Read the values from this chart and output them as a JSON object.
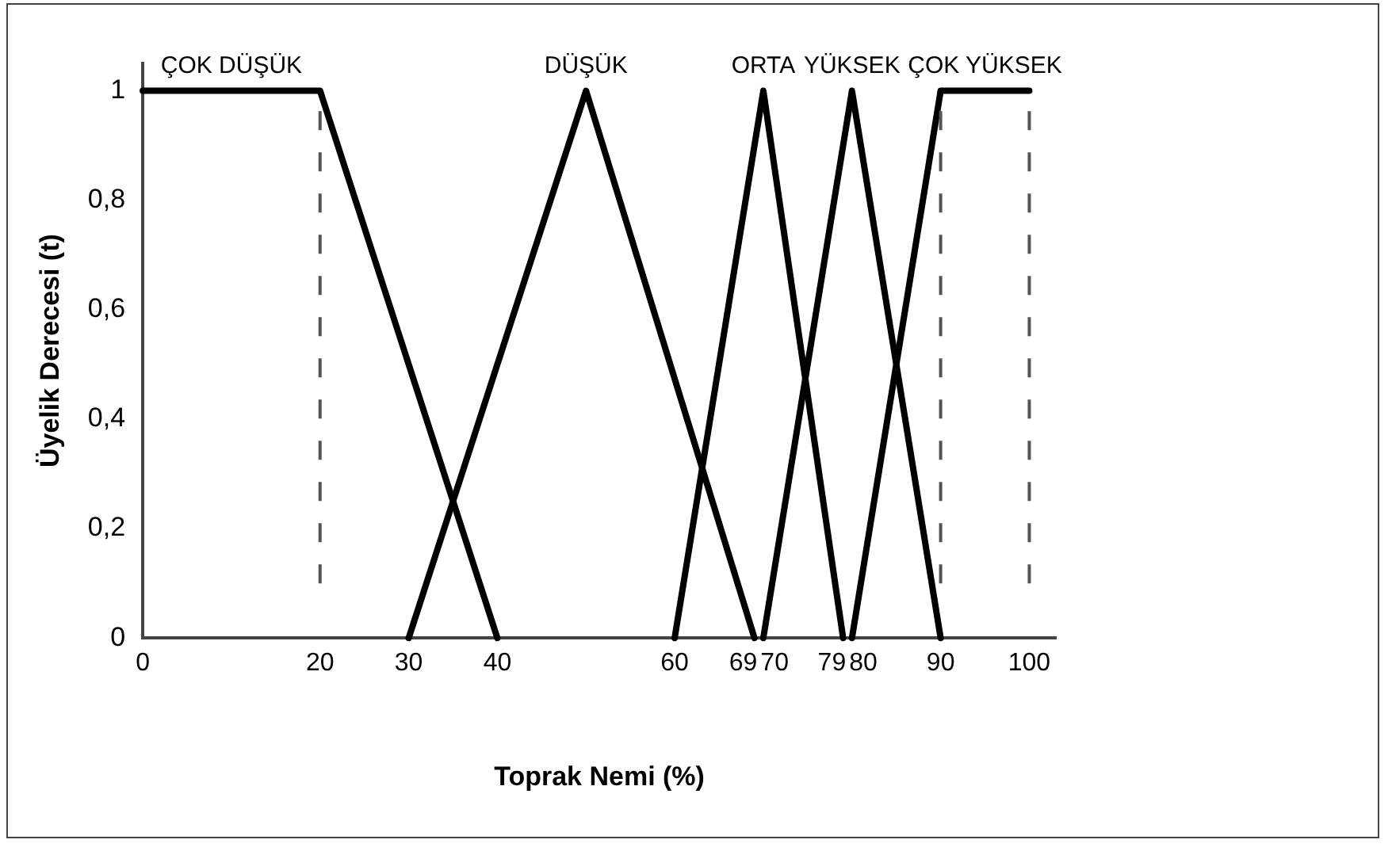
{
  "chart_data": {
    "type": "line",
    "xlabel": "Toprak Nemi (%)",
    "ylabel": "Üyelik Derecesi (t)",
    "xlim": [
      0,
      103
    ],
    "xticks": [
      0,
      20,
      30,
      40,
      60,
      69,
      70,
      79,
      80,
      90,
      100
    ],
    "ylim": [
      0,
      1.05
    ],
    "yticks": [
      0,
      {
        "value": 0.2,
        "label": "0,2"
      },
      {
        "value": 0.4,
        "label": "0,4"
      },
      {
        "value": 0.6,
        "label": "0,6"
      },
      {
        "value": 0.8,
        "label": "0,8"
      },
      1
    ],
    "series": [
      {
        "name": "ÇOK DÜŞÜK",
        "color": "#000000",
        "x": [
          0,
          20,
          40
        ],
        "values": [
          1,
          1,
          0
        ]
      },
      {
        "name": "DÜŞÜK",
        "color": "#000000",
        "x": [
          30,
          50,
          69
        ],
        "values": [
          0,
          1,
          0
        ]
      },
      {
        "name": "ORTA",
        "color": "#000000",
        "x": [
          60,
          70,
          79
        ],
        "values": [
          0,
          1,
          0
        ]
      },
      {
        "name": "YÜKSEK",
        "color": "#000000",
        "x": [
          70,
          80,
          90
        ],
        "values": [
          0,
          1,
          0
        ]
      },
      {
        "name": "ÇOK YÜKSEK",
        "color": "#000000",
        "x": [
          80,
          90,
          100
        ],
        "values": [
          0,
          1,
          1
        ]
      }
    ],
    "ref_lines": [
      {
        "axis": "x",
        "value": 20,
        "color": "#555555",
        "line_style": "dashed"
      },
      {
        "axis": "x",
        "value": 90,
        "color": "#555555",
        "line_style": "dashed"
      },
      {
        "axis": "x",
        "value": 100,
        "color": "#555555",
        "line_style": "dashed"
      }
    ],
    "grid": false,
    "legend": false,
    "marker": "none",
    "line_style": "solid"
  }
}
